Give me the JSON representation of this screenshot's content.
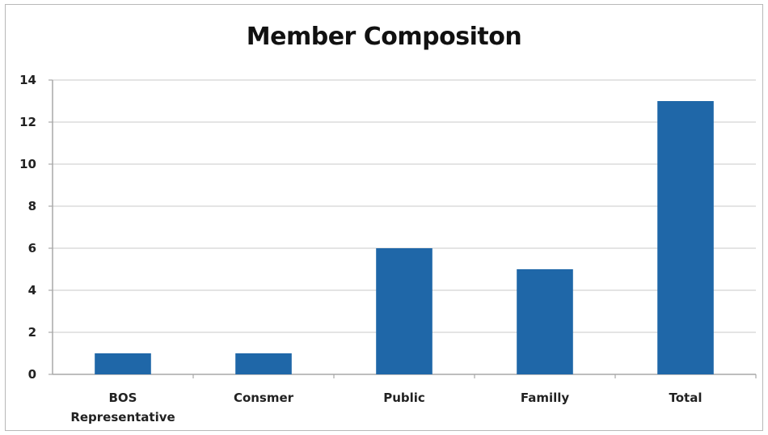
{
  "chart_data": {
    "type": "bar",
    "title": "Member Compositon",
    "categories": [
      "BOS Representative",
      "Consmer",
      "Public",
      "Familly",
      "Total"
    ],
    "category_label_lines": [
      [
        "BOS",
        "Representative"
      ],
      [
        "Consmer"
      ],
      [
        "Public"
      ],
      [
        "Familly"
      ],
      [
        "Total"
      ]
    ],
    "values": [
      1,
      1,
      6,
      5,
      13
    ],
    "ylim": [
      0,
      14
    ],
    "yticks": [
      0,
      2,
      4,
      6,
      8,
      10,
      12,
      14
    ],
    "xlabel": "",
    "ylabel": "",
    "grid": true,
    "legend": "none",
    "bar_color": "#1f67a8",
    "grid_color": "#d4d4d4",
    "axis_color": "#a8a8a8"
  }
}
